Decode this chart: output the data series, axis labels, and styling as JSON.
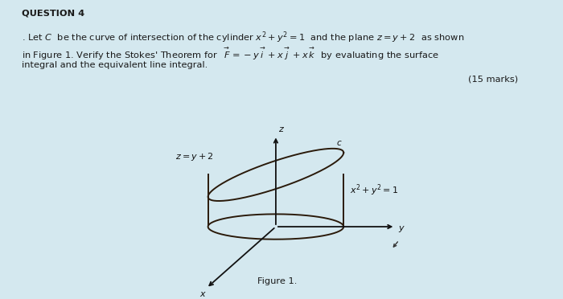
{
  "title": "QUESTION 4",
  "bg_color": "#d4e8ef",
  "text_color": "#1a1a1a",
  "line1": ". Let $\\mathit{C}$  be the curve of intersection of the cylinder $x^2 +y^2 =1$  and the plane $z = y+2$  as shown",
  "line2": "in Figure 1. Verify the Stokes' Theorem for  $\\overset{\\rightarrow}{F}= -y\\overset{\\rightarrow}{i}  + x\\overset{\\rightarrow}{j}  + x\\overset{\\rightarrow}{k}$  by evaluating the surface",
  "line3": "integral and the equivalent line integral.",
  "marks": "(15 marks)",
  "fig_caption": "Figure 1.",
  "lbl_z": "z",
  "lbl_y": "y",
  "lbl_x": "x",
  "lbl_plane": "$z = y+2$",
  "lbl_cyl": "$x^2 +y^2 =1$",
  "lbl_c": "$c$",
  "dark_color": "#2a1a0a",
  "axis_color": "#111111"
}
